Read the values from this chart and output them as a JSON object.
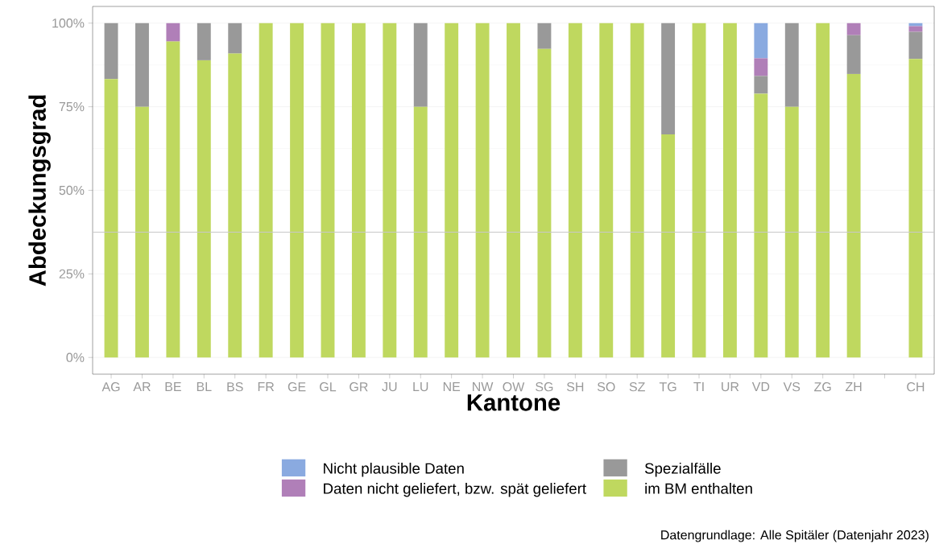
{
  "chart_data": {
    "type": "bar",
    "stacked": true,
    "xlabel": "Kantone",
    "ylabel": "Abdeckungsgrad",
    "categories": [
      "AG",
      "AR",
      "BE",
      "BL",
      "BS",
      "FR",
      "GE",
      "GL",
      "GR",
      "JU",
      "LU",
      "NE",
      "NW",
      "OW",
      "SG",
      "SH",
      "SO",
      "SZ",
      "TG",
      "TI",
      "UR",
      "VD",
      "VS",
      "ZG",
      "ZH",
      null,
      "CH"
    ],
    "series": [
      {
        "name": "im BM enthalten",
        "color": "#bfd85f",
        "values": [
          83.3,
          75,
          94.5,
          88.9,
          90.9,
          100,
          100,
          100,
          100,
          100,
          75,
          100,
          100,
          100,
          92.3,
          100,
          100,
          100,
          66.7,
          100,
          100,
          78.9,
          75,
          100,
          84.8,
          null,
          89.3
        ]
      },
      {
        "name": "Spezialfälle",
        "color": "#999999",
        "values": [
          16.7,
          25,
          0,
          11.1,
          9.1,
          0,
          0,
          0,
          0,
          0,
          25,
          0,
          0,
          0,
          7.7,
          0,
          0,
          0,
          33.3,
          0,
          0,
          5.3,
          25,
          0,
          11.6,
          null,
          8.1
        ]
      },
      {
        "name": "Daten nicht geliefert, bzw. spät geliefert",
        "color": "#b07fb8",
        "values": [
          0,
          0,
          5.5,
          0,
          0,
          0,
          0,
          0,
          0,
          0,
          0,
          0,
          0,
          0,
          0,
          0,
          0,
          0,
          0,
          0,
          0,
          5.3,
          0,
          0,
          3.6,
          null,
          1.7
        ]
      },
      {
        "name": "Nicht plausible Daten",
        "color": "#8aaae0",
        "values": [
          0,
          0,
          0,
          0,
          0,
          0,
          0,
          0,
          0,
          0,
          0,
          0,
          0,
          0,
          0,
          0,
          0,
          0,
          0,
          0,
          0,
          10.5,
          0,
          0,
          0,
          null,
          0.9
        ]
      }
    ],
    "ylim": [
      -5,
      105
    ],
    "yticks": [
      {
        "value": 0,
        "label": "0%"
      },
      {
        "value": 25,
        "label": "25%"
      },
      {
        "value": 50,
        "label": "50%"
      },
      {
        "value": 75,
        "label": "75%"
      },
      {
        "value": 100,
        "label": "100%"
      }
    ],
    "grid": "y",
    "legend": "bottom",
    "ref_lines": [
      {
        "axis": "y",
        "value": 37.5,
        "color": "#c8c8c8"
      }
    ],
    "annotations": [
      "Datengrundlage: Alle Spitäler (Datenjahr 2023)"
    ]
  }
}
